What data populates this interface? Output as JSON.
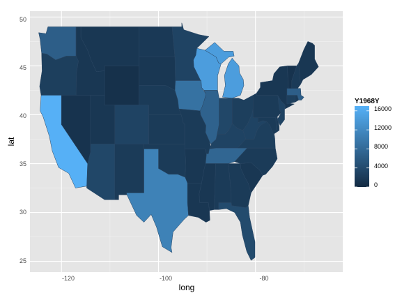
{
  "chart_data": {
    "type": "choropleth",
    "xlabel": "long",
    "ylabel": "lat",
    "x_ticks": [
      "-120",
      "-100",
      "-80"
    ],
    "y_ticks": [
      "25",
      "30",
      "35",
      "40",
      "45",
      "50"
    ],
    "xlim": [
      -126.5,
      -62
    ],
    "ylim": [
      23.9,
      50.6
    ],
    "grid": "on",
    "legend": {
      "title": "Y1968Y",
      "position": "right",
      "labels": [
        "16000",
        "12000",
        "8000",
        "4000",
        "0"
      ],
      "values": [
        16000,
        12000,
        8000,
        4000,
        0
      ],
      "range": [
        0,
        17000
      ],
      "color_low": "#132b43",
      "color_high": "#56b1f7"
    },
    "regions": [
      {
        "name": "washington",
        "value": 6500
      },
      {
        "name": "oregon",
        "value": 2500
      },
      {
        "name": "california",
        "value": 16900
      },
      {
        "name": "idaho",
        "value": 1500
      },
      {
        "name": "nevada",
        "value": 1000
      },
      {
        "name": "utah",
        "value": 1500
      },
      {
        "name": "arizona",
        "value": 3500
      },
      {
        "name": "montana",
        "value": 1500
      },
      {
        "name": "wyoming",
        "value": 800
      },
      {
        "name": "colorado",
        "value": 3000
      },
      {
        "name": "new mexico",
        "value": 2000
      },
      {
        "name": "north dakota",
        "value": 1800
      },
      {
        "name": "south dakota",
        "value": 1500
      },
      {
        "name": "nebraska",
        "value": 2000
      },
      {
        "name": "kansas",
        "value": 2000
      },
      {
        "name": "oklahoma",
        "value": 2000
      },
      {
        "name": "texas",
        "value": 11000
      },
      {
        "name": "minnesota",
        "value": 3000
      },
      {
        "name": "iowa",
        "value": 9000
      },
      {
        "name": "missouri",
        "value": 2000
      },
      {
        "name": "arkansas",
        "value": 1500
      },
      {
        "name": "louisiana",
        "value": 1500
      },
      {
        "name": "wisconsin",
        "value": 14500
      },
      {
        "name": "illinois",
        "value": 7000
      },
      {
        "name": "michigan",
        "value": 14500
      },
      {
        "name": "indiana",
        "value": 3500
      },
      {
        "name": "ohio",
        "value": 2500
      },
      {
        "name": "kentucky",
        "value": 3000
      },
      {
        "name": "tennessee",
        "value": 7500
      },
      {
        "name": "mississippi",
        "value": 1500
      },
      {
        "name": "alabama",
        "value": 2000
      },
      {
        "name": "georgia",
        "value": 2000
      },
      {
        "name": "florida",
        "value": 4000
      },
      {
        "name": "south carolina",
        "value": 1500
      },
      {
        "name": "north carolina",
        "value": 2000
      },
      {
        "name": "virginia",
        "value": 2500
      },
      {
        "name": "west virginia",
        "value": 3000
      },
      {
        "name": "maryland",
        "value": 2000
      },
      {
        "name": "delaware",
        "value": 2000
      },
      {
        "name": "pennsylvania",
        "value": 2000
      },
      {
        "name": "new jersey",
        "value": 3000
      },
      {
        "name": "new york",
        "value": 1500
      },
      {
        "name": "connecticut",
        "value": 2500
      },
      {
        "name": "rhode island",
        "value": 2000
      },
      {
        "name": "massachusetts",
        "value": 6500
      },
      {
        "name": "vermont",
        "value": 1000
      },
      {
        "name": "new hampshire",
        "value": 2000
      },
      {
        "name": "maine",
        "value": 1500
      }
    ]
  }
}
